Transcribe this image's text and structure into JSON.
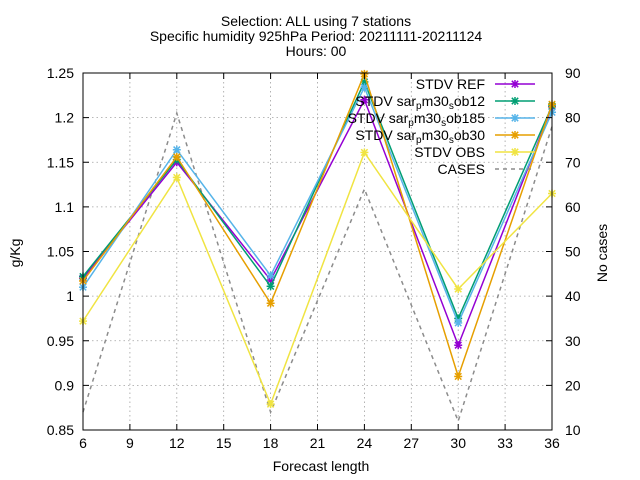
{
  "title_lines": [
    "Selection: ALL using     7 stations",
    "Specific humidity 925hPa   Period: 20211111-20211124",
    "Hours: 00"
  ],
  "chart_data": {
    "type": "line",
    "xlabel": "Forecast length",
    "ylabel": "g/Kg",
    "y2label": "No cases",
    "x_ticks": [
      6,
      9,
      12,
      15,
      18,
      21,
      24,
      27,
      30,
      33,
      36
    ],
    "y_ticks": [
      0.85,
      0.9,
      0.95,
      1,
      1.05,
      1.1,
      1.15,
      1.2,
      1.25
    ],
    "y_tick_labels": [
      "0.85",
      "0.9",
      "0.95",
      "1",
      "1.05",
      "1.1",
      "1.15",
      "1.2",
      "1.25"
    ],
    "y2_ticks": [
      10,
      20,
      30,
      40,
      50,
      60,
      70,
      80,
      90
    ],
    "xlim": [
      6,
      36
    ],
    "ylim": [
      0.85,
      1.25
    ],
    "y2lim": [
      10,
      90
    ],
    "grid": true,
    "legend_position": "top-right",
    "x": [
      6,
      12,
      18,
      24,
      30,
      36
    ],
    "series": [
      {
        "name": "STDV REF",
        "color": "#9400d3",
        "marker": "x-star",
        "axis": "y1",
        "values": [
          1.02,
          1.15,
          1.018,
          1.22,
          0.945,
          1.212
        ]
      },
      {
        "name": "STDV sar_pm30_sob12",
        "legend_html": [
          "STDV sar",
          "p",
          "m30",
          "s",
          "ob12"
        ],
        "color": "#009e73",
        "marker": "x-star",
        "axis": "y1",
        "values": [
          1.022,
          1.153,
          1.011,
          1.24,
          0.975,
          1.213
        ]
      },
      {
        "name": "STDV sar_pm30_sob185",
        "legend_html": [
          "STDV sar",
          "p",
          "m30",
          "s",
          "ob185"
        ],
        "color": "#56b4e9",
        "marker": "x-star",
        "axis": "y1",
        "values": [
          1.01,
          1.164,
          1.023,
          1.234,
          0.97,
          1.206
        ]
      },
      {
        "name": "STDV sar_pm30_sob30",
        "legend_html": [
          "STDV sar",
          "p",
          "m30",
          "s",
          "ob30"
        ],
        "color": "#e69f00",
        "marker": "x-star",
        "axis": "y1",
        "values": [
          1.017,
          1.156,
          0.992,
          1.249,
          0.91,
          1.215
        ]
      },
      {
        "name": "STDV OBS",
        "color": "#f0e442",
        "marker": "x-star",
        "axis": "y1",
        "values": [
          0.972,
          1.133,
          0.879,
          1.161,
          1.008,
          1.115
        ]
      },
      {
        "name": "CASES",
        "color": "#8c8c8c",
        "marker": "none",
        "dashed": true,
        "axis": "y2",
        "values": [
          14,
          81,
          14,
          64,
          12,
          78
        ]
      }
    ]
  }
}
